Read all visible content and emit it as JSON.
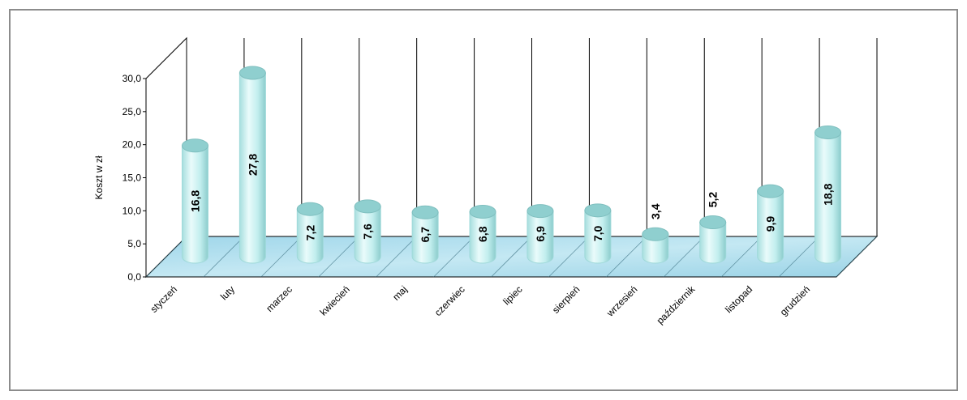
{
  "chart_data": {
    "type": "bar",
    "style": "3d-cylinder",
    "categories": [
      "styczeń",
      "luty",
      "marzec",
      "kwiecień",
      "maj",
      "czerwiec",
      "lipiec",
      "sierpień",
      "wrzesień",
      "październik",
      "listopad",
      "grudzień"
    ],
    "values": [
      16.8,
      27.8,
      7.2,
      7.6,
      6.7,
      6.8,
      6.9,
      7.0,
      3.4,
      5.2,
      9.9,
      18.8
    ],
    "value_labels": [
      "16,8",
      "27,8",
      "7,2",
      "7,6",
      "6,7",
      "6,8",
      "6,9",
      "7,0",
      "3,4",
      "5,2",
      "9,9",
      "18,8"
    ],
    "yticks": [
      0,
      5,
      10,
      15,
      20,
      25,
      30
    ],
    "ytick_labels": [
      "0,0",
      "5,0",
      "10,0",
      "15,0",
      "20,0",
      "25,0",
      "30,0"
    ],
    "ylim": [
      0,
      30
    ],
    "ylabel": "Koszt w zł",
    "xlabel": "",
    "title": "",
    "grid": "vertical",
    "legend": "none",
    "colors": {
      "bar": "#c8f2f2",
      "bar_edge": "#9fd9d9",
      "bar_top": "#8fcfcf",
      "floor": "#a9dcec",
      "wall": "#ffffff",
      "frame": "#8c8c8c"
    }
  }
}
